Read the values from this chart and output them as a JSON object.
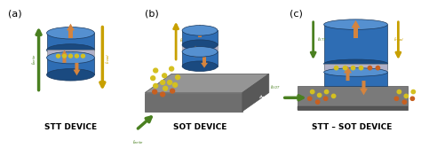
{
  "background_color": "#ffffff",
  "panel_labels": [
    "(a)",
    "(b)",
    "(c)"
  ],
  "device_labels": [
    "STT DEVICE",
    "SOT DEVICE",
    "STT – SOT DEVICE"
  ],
  "panel_label_fontsize": 8,
  "device_label_fontsize": 6.5,
  "cyl_body": "#2e6db4",
  "cyl_top": "#5590d0",
  "cyl_dark": "#1a4a80",
  "cyl_edge": "#1a3a60",
  "mgo_color": "#b0b0c8",
  "heavy_metal_top": "#909090",
  "heavy_metal_front": "#707070",
  "heavy_metal_right": "#606060",
  "slab_color": "#888888",
  "slab_bottom": "#606060",
  "arrow_orange": "#d4843e",
  "dot_yellow": "#d4c020",
  "dot_orange": "#c86020",
  "green_color": "#4a8020",
  "yellow_color": "#c8a000",
  "text_color": "#222222"
}
